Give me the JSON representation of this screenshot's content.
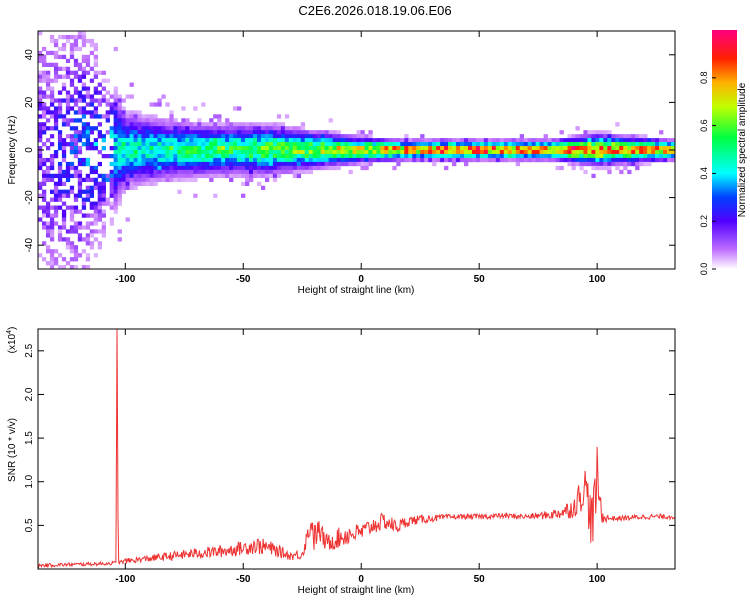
{
  "title": "C2E6.2026.018.19.06.E06",
  "chart_data": [
    {
      "type": "heatmap",
      "xlabel": "Height of straight line (km)",
      "ylabel": "Frequency (Hz)",
      "xlim": [
        -137,
        133
      ],
      "ylim": [
        -50,
        50
      ],
      "xticks": [
        -100,
        -50,
        0,
        50,
        100
      ],
      "yticks": [
        -40,
        -20,
        0,
        20,
        40
      ],
      "xtick_labels": [
        "-100",
        "-50",
        "0",
        "50",
        "100"
      ],
      "ytick_labels": [
        "-40",
        "-20",
        "0",
        "20",
        "40"
      ],
      "colorbar": {
        "label": "Normalized spectral amplitude",
        "range": [
          0,
          1
        ],
        "ticks": [
          0.0,
          0.2,
          0.4,
          0.6,
          0.8
        ],
        "tick_labels": [
          "0.0",
          "0.2",
          "0.4",
          "0.6",
          "0.8"
        ],
        "colors": [
          "#ffffff",
          "#a000ff",
          "#0000ff",
          "#00ffff",
          "#00ff00",
          "#ffff00",
          "#ff8000",
          "#ff0000",
          "#ff0080"
        ]
      },
      "profile": {
        "x": [
          -137,
          -120,
          -100,
          -80,
          -60,
          -40,
          -20,
          0,
          20,
          40,
          60,
          80,
          100,
          133
        ],
        "center_hz": [
          0,
          0,
          0,
          0,
          0,
          0,
          0,
          0,
          0,
          0,
          0,
          0,
          0,
          0
        ],
        "peak_amplitude": [
          0.2,
          0.3,
          0.45,
          0.5,
          0.55,
          0.6,
          0.65,
          0.75,
          0.85,
          0.9,
          0.9,
          0.88,
          0.85,
          0.8
        ],
        "spread_hz": [
          48,
          46,
          12,
          9,
          8,
          8,
          6,
          4,
          3,
          3,
          3,
          3,
          5,
          3
        ]
      }
    },
    {
      "type": "line",
      "xlabel": "Height of straight line (km)",
      "ylabel": "SNR (10 * v/v)",
      "y_multiplier": "(x10",
      "y_multiplier_exp": "4",
      "y_multiplier_close": ")",
      "xlim": [
        -137,
        133
      ],
      "ylim": [
        0,
        2.75
      ],
      "xticks": [
        -100,
        -50,
        0,
        50,
        100
      ],
      "yticks": [
        0.5,
        1.0,
        1.5,
        2.0,
        2.5
      ],
      "xtick_labels": [
        "-100",
        "-50",
        "0",
        "50",
        "100"
      ],
      "ytick_labels": [
        "0.5",
        "1.0",
        "1.5",
        "2.0",
        "2.5"
      ],
      "color": "#ee3333",
      "series": [
        {
          "x": [
            -137,
            -125,
            -110,
            -104,
            -103.5,
            -103,
            -100,
            -90,
            -80,
            -70,
            -60,
            -50,
            -45,
            -40,
            -35,
            -30,
            -25,
            -21,
            -20,
            -18,
            -15,
            -10,
            -5,
            0,
            5,
            10,
            15,
            20,
            30,
            40,
            50,
            60,
            70,
            80,
            85,
            90,
            95,
            98,
            100,
            102,
            105,
            110,
            120,
            133
          ],
          "y": [
            0.04,
            0.05,
            0.06,
            0.07,
            2.75,
            0.07,
            0.09,
            0.12,
            0.15,
            0.18,
            0.2,
            0.24,
            0.27,
            0.25,
            0.2,
            0.15,
            0.17,
            0.55,
            0.35,
            0.45,
            0.3,
            0.35,
            0.4,
            0.42,
            0.5,
            0.55,
            0.48,
            0.55,
            0.58,
            0.6,
            0.6,
            0.61,
            0.6,
            0.62,
            0.65,
            0.7,
            0.95,
            0.5,
            1.05,
            0.6,
            0.58,
            0.58,
            0.6,
            0.6
          ],
          "noise": [
            0.02,
            0.02,
            0.02,
            0.02,
            0,
            0.02,
            0.03,
            0.04,
            0.05,
            0.06,
            0.07,
            0.08,
            0.1,
            0.09,
            0.07,
            0.05,
            0.06,
            0.15,
            0.15,
            0.14,
            0.1,
            0.12,
            0.12,
            0.1,
            0.1,
            0.1,
            0.08,
            0.06,
            0.04,
            0.03,
            0.03,
            0.03,
            0.03,
            0.05,
            0.08,
            0.12,
            0.25,
            0.35,
            0.35,
            0.08,
            0.03,
            0.03,
            0.03,
            0.03
          ]
        }
      ]
    }
  ]
}
